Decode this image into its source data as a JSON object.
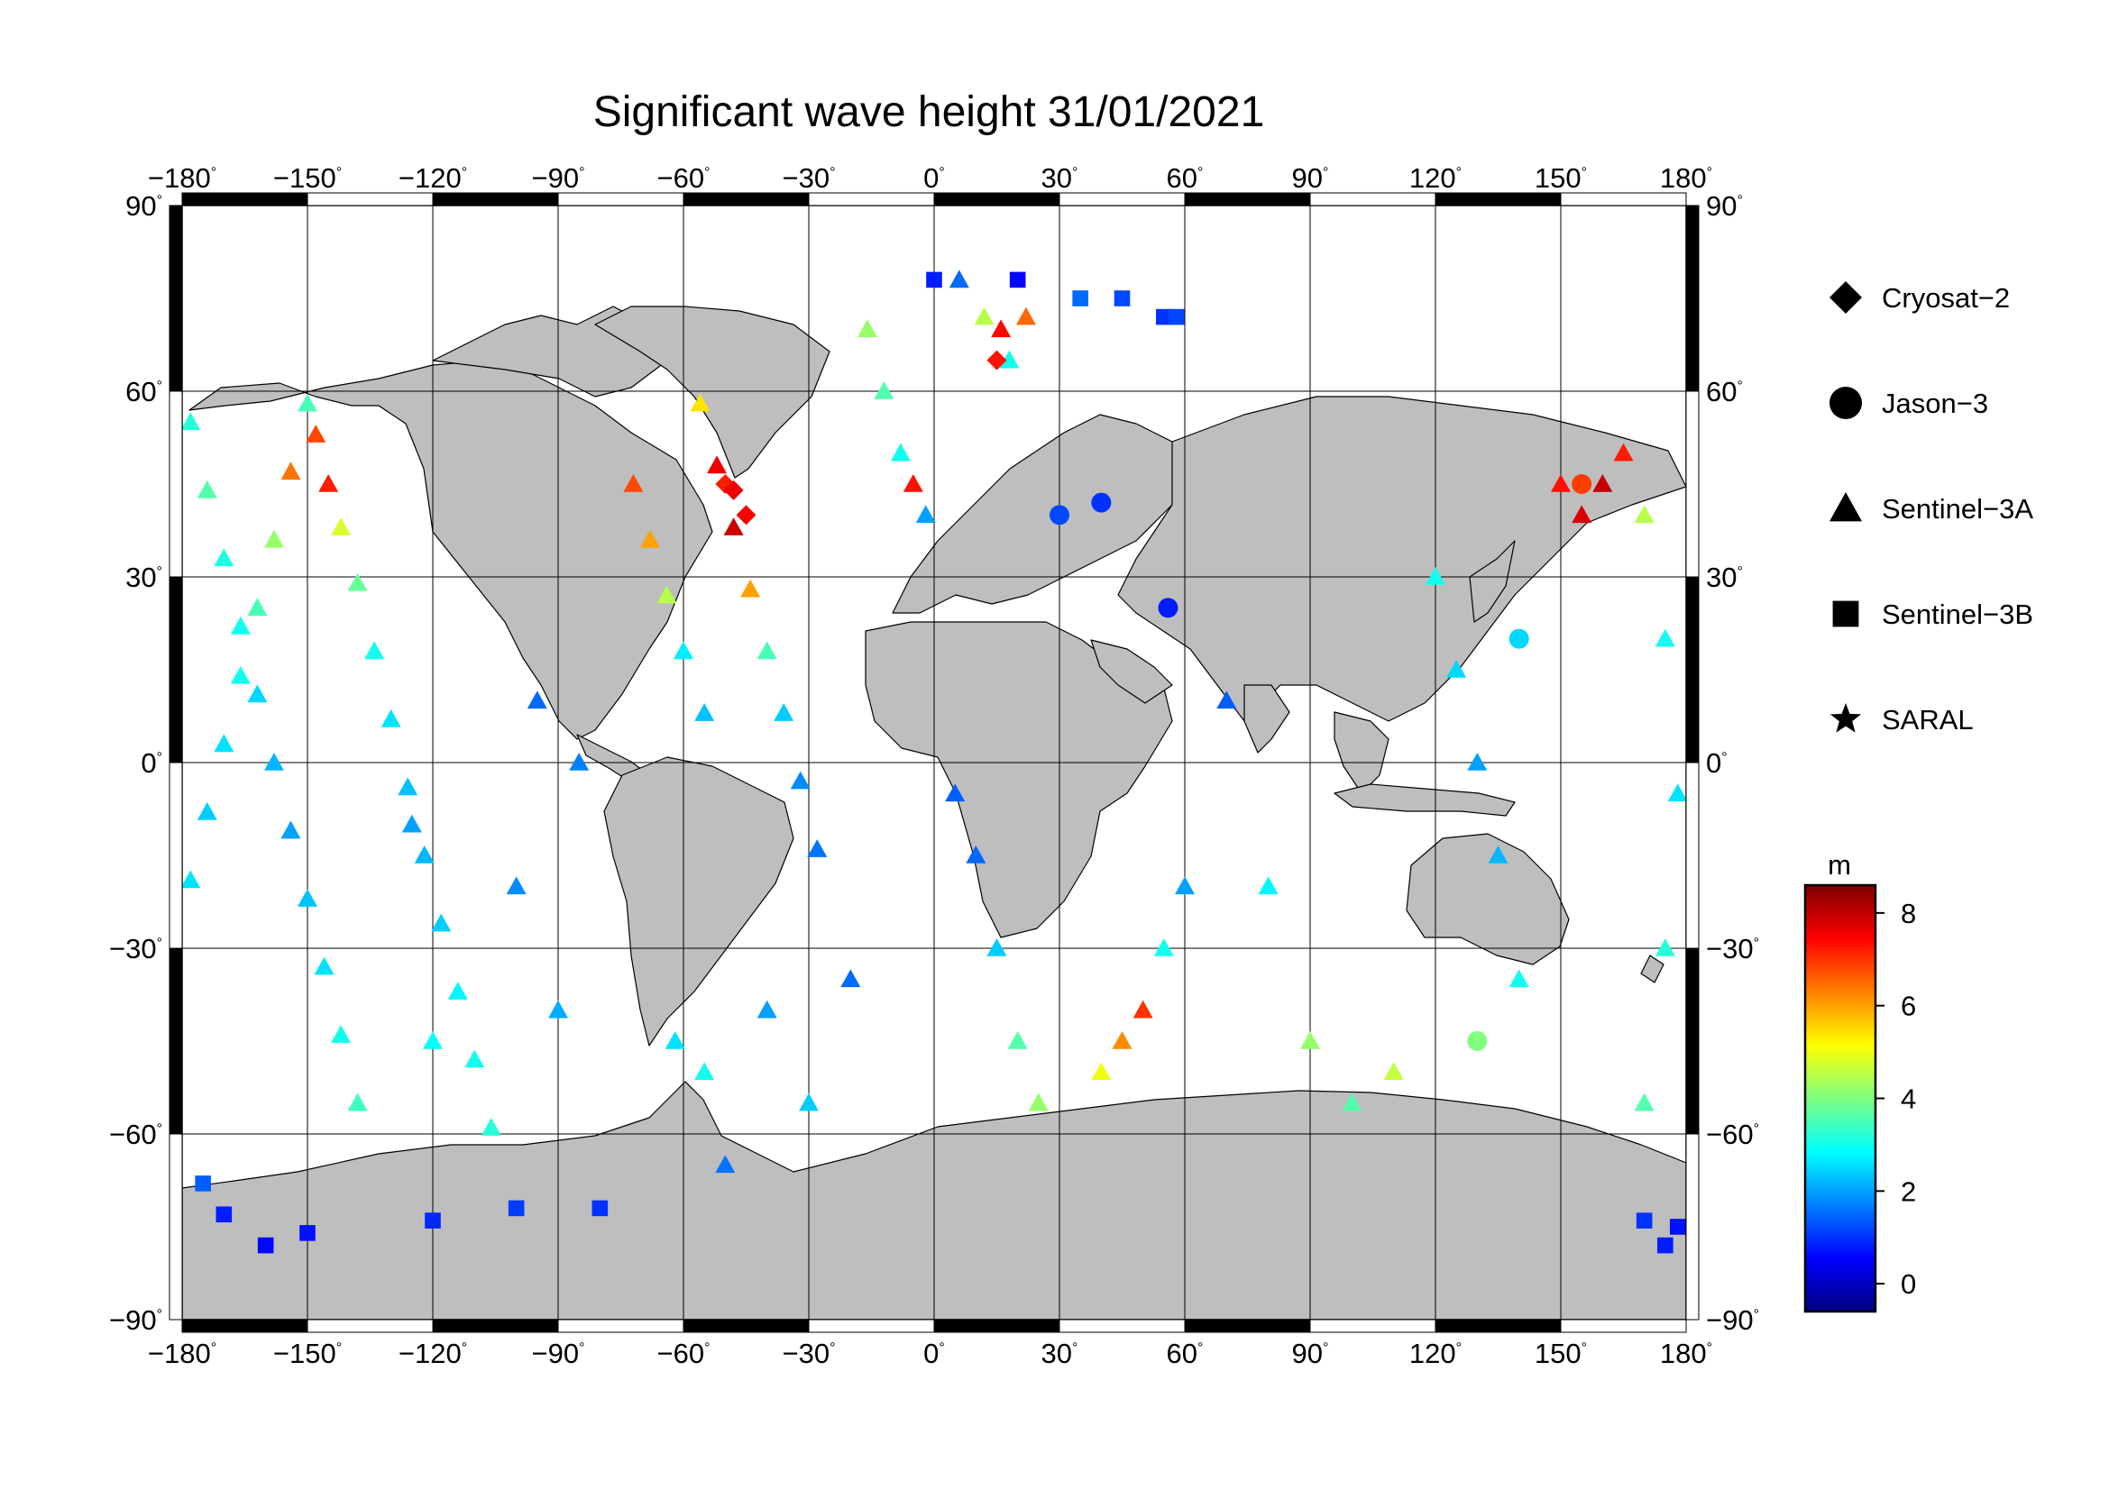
{
  "title": "Significant wave height 31/01/2021",
  "map": {
    "projection": "equirectangular",
    "lon_range": [
      -180,
      180
    ],
    "lat_range": [
      -90,
      90
    ],
    "lon_ticks": [
      "−180",
      "−150",
      "−120",
      "−90",
      "−60",
      "−30",
      "0",
      "30",
      "60",
      "90",
      "120",
      "150",
      "180"
    ],
    "lat_ticks": [
      "90",
      "60",
      "30",
      "0",
      "−30",
      "−60",
      "−90"
    ],
    "lon_tick_values": [
      -180,
      -150,
      -120,
      -90,
      -60,
      -30,
      0,
      30,
      60,
      90,
      120,
      150,
      180
    ],
    "lat_tick_values": [
      90,
      60,
      30,
      0,
      -30,
      -60,
      -90
    ],
    "degree_symbol": "°",
    "grid": true,
    "land_color": "#bebebe",
    "ocean_color": "#ffffff"
  },
  "legend": {
    "placement": "right",
    "items": [
      {
        "label": "Cryosat−2",
        "icon": "diamond-icon"
      },
      {
        "label": "Jason−3",
        "icon": "circle-icon"
      },
      {
        "label": "Sentinel−3A",
        "icon": "triangle-icon"
      },
      {
        "label": "Sentinel−3B",
        "icon": "square-icon"
      },
      {
        "label": "SARAL",
        "icon": "star-icon"
      }
    ]
  },
  "colorbar": {
    "unit": "m",
    "range": [
      -0.6,
      8.6
    ],
    "ticks": [
      "8",
      "6",
      "4",
      "2",
      "0"
    ],
    "tick_values": [
      8,
      6,
      4,
      2,
      0
    ],
    "colormap": "jet"
  },
  "chart_data": {
    "type": "scatter",
    "title": "Significant wave height 31/01/2021",
    "xlabel": "",
    "ylabel": "",
    "xlim": [
      -180,
      180
    ],
    "ylim": [
      -90,
      90
    ],
    "value_unit": "m",
    "series": [
      {
        "name": "Sentinel−3A",
        "marker": "triangle",
        "points": [
          [
            -178,
            55,
            3.2
          ],
          [
            -174,
            44,
            3.6
          ],
          [
            -170,
            33,
            3.1
          ],
          [
            -166,
            22,
            3.0
          ],
          [
            -162,
            11,
            2.5
          ],
          [
            -158,
            0,
            2.2
          ],
          [
            -154,
            -11,
            2.0
          ],
          [
            -150,
            -22,
            2.3
          ],
          [
            -146,
            -33,
            2.6
          ],
          [
            -142,
            -44,
            3.0
          ],
          [
            -138,
            -55,
            3.4
          ],
          [
            -150,
            58,
            3.5
          ],
          [
            -154,
            47,
            6.4
          ],
          [
            -158,
            36,
            4.2
          ],
          [
            -162,
            25,
            3.5
          ],
          [
            -166,
            14,
            3.0
          ],
          [
            -170,
            3,
            2.6
          ],
          [
            -174,
            -8,
            2.4
          ],
          [
            -178,
            -19,
            2.6
          ],
          [
            -148,
            53,
            6.8
          ],
          [
            -145,
            45,
            7.2
          ],
          [
            -142,
            38,
            4.8
          ],
          [
            -138,
            29,
            3.8
          ],
          [
            -134,
            18,
            3.0
          ],
          [
            -130,
            7,
            2.6
          ],
          [
            -126,
            -4,
            2.3
          ],
          [
            -122,
            -15,
            2.2
          ],
          [
            -118,
            -26,
            2.4
          ],
          [
            -114,
            -37,
            2.8
          ],
          [
            -110,
            -48,
            3.0
          ],
          [
            -106,
            -59,
            3.2
          ],
          [
            -125,
            -10,
            2.0
          ],
          [
            -120,
            -45,
            2.9
          ],
          [
            -100,
            -20,
            1.8
          ],
          [
            -95,
            10,
            1.5
          ],
          [
            -90,
            -40,
            2.1
          ],
          [
            -85,
            0,
            1.7
          ],
          [
            -72,
            45,
            6.8
          ],
          [
            -68,
            36,
            6.0
          ],
          [
            -64,
            27,
            4.5
          ],
          [
            -60,
            18,
            2.7
          ],
          [
            -55,
            8,
            2.3
          ],
          [
            -56,
            58,
            5.4
          ],
          [
            -52,
            48,
            7.6
          ],
          [
            -48,
            38,
            7.9
          ],
          [
            -44,
            28,
            6.0
          ],
          [
            -40,
            18,
            3.5
          ],
          [
            -36,
            8,
            2.4
          ],
          [
            -32,
            -3,
            1.8
          ],
          [
            -28,
            -14,
            1.6
          ],
          [
            -62,
            -45,
            2.6
          ],
          [
            -55,
            -50,
            3.0
          ],
          [
            -50,
            -65,
            1.6
          ],
          [
            -40,
            -40,
            2.0
          ],
          [
            -30,
            -55,
            2.4
          ],
          [
            -20,
            -35,
            1.5
          ],
          [
            -16,
            70,
            4.2
          ],
          [
            -12,
            60,
            3.6
          ],
          [
            -8,
            50,
            3.0
          ],
          [
            -5,
            45,
            7.3
          ],
          [
            -2,
            40,
            2.0
          ],
          [
            6,
            78,
            1.5
          ],
          [
            12,
            72,
            4.5
          ],
          [
            16,
            70,
            7.4
          ],
          [
            22,
            72,
            6.5
          ],
          [
            18,
            65,
            3.0
          ],
          [
            5,
            -5,
            1.4
          ],
          [
            10,
            -15,
            1.5
          ],
          [
            15,
            -30,
            2.4
          ],
          [
            20,
            -45,
            3.6
          ],
          [
            25,
            -55,
            4.2
          ],
          [
            40,
            -50,
            5.0
          ],
          [
            45,
            -45,
            6.2
          ],
          [
            50,
            -40,
            7.0
          ],
          [
            55,
            -30,
            3.0
          ],
          [
            60,
            -20,
            2.0
          ],
          [
            70,
            10,
            1.4
          ],
          [
            80,
            -20,
            2.8
          ],
          [
            90,
            -45,
            4.2
          ],
          [
            100,
            -55,
            3.6
          ],
          [
            110,
            -50,
            4.6
          ],
          [
            120,
            30,
            3.0
          ],
          [
            125,
            15,
            2.5
          ],
          [
            130,
            0,
            2.0
          ],
          [
            135,
            -15,
            2.2
          ],
          [
            140,
            -35,
            3.0
          ],
          [
            150,
            45,
            7.3
          ],
          [
            155,
            40,
            7.8
          ],
          [
            160,
            45,
            8.0
          ],
          [
            165,
            50,
            7.2
          ],
          [
            170,
            40,
            4.5
          ],
          [
            175,
            20,
            3.0
          ],
          [
            178,
            -5,
            2.6
          ],
          [
            175,
            -30,
            3.2
          ],
          [
            170,
            -55,
            3.6
          ]
        ]
      },
      {
        "name": "Sentinel−3B",
        "marker": "square",
        "points": [
          [
            -175,
            -68,
            1.4
          ],
          [
            -170,
            -73,
            0.8
          ],
          [
            -160,
            -78,
            0.6
          ],
          [
            -150,
            -76,
            0.7
          ],
          [
            -120,
            -74,
            0.9
          ],
          [
            -100,
            -72,
            1.1
          ],
          [
            -80,
            -72,
            1.0
          ],
          [
            0,
            78,
            0.8
          ],
          [
            20,
            78,
            0.6
          ],
          [
            35,
            75,
            1.5
          ],
          [
            45,
            75,
            1.2
          ],
          [
            55,
            72,
            1.0
          ],
          [
            58,
            72,
            1.2
          ],
          [
            170,
            -74,
            1.0
          ],
          [
            175,
            -78,
            0.8
          ],
          [
            178,
            -75,
            0.7
          ]
        ]
      },
      {
        "name": "Cryosat−2",
        "marker": "diamond",
        "points": [
          [
            -45,
            40,
            7.5
          ],
          [
            -50,
            45,
            7.2
          ],
          [
            -48,
            44,
            7.6
          ],
          [
            15,
            65,
            7.3
          ]
        ]
      },
      {
        "name": "Jason−3",
        "marker": "circle",
        "points": [
          [
            30,
            40,
            1.2
          ],
          [
            40,
            42,
            1.0
          ],
          [
            56,
            25,
            0.8
          ],
          [
            140,
            20,
            2.5
          ],
          [
            155,
            45,
            6.9
          ],
          [
            130,
            -45,
            4.0
          ]
        ]
      }
    ]
  }
}
